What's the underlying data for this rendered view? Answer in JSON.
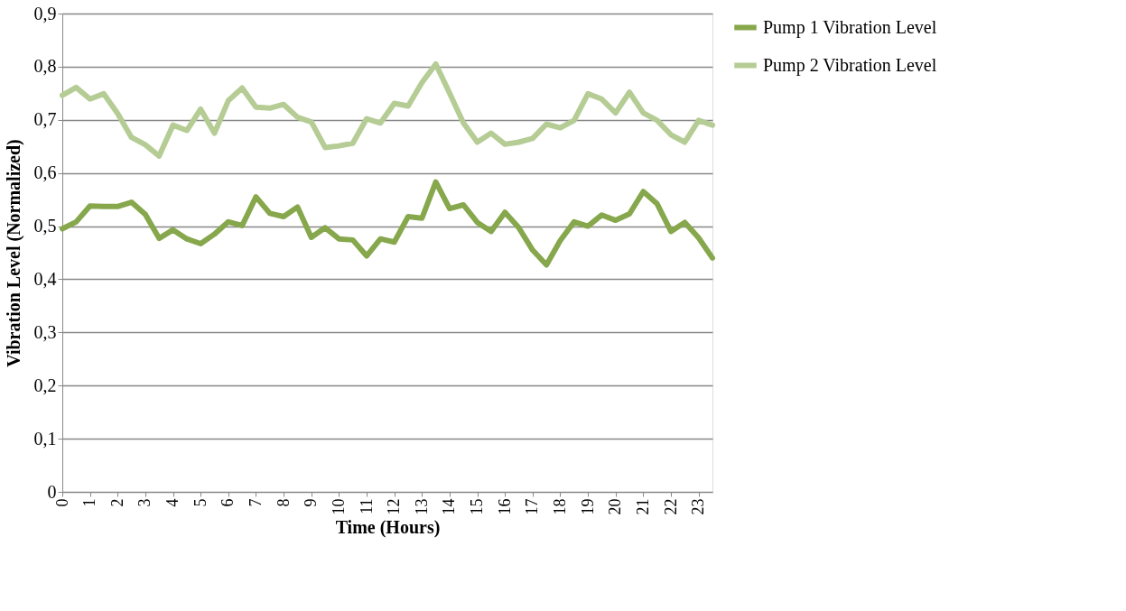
{
  "chart_data": {
    "type": "line",
    "xlabel": "Time (Hours)",
    "ylabel": "Vibration Level (Normalized)",
    "x": [
      0,
      0.5,
      1,
      1.5,
      2,
      2.5,
      3,
      3.5,
      4,
      4.5,
      5,
      5.5,
      6,
      6.5,
      7,
      7.5,
      8,
      8.5,
      9,
      9.5,
      10,
      10.5,
      11,
      11.5,
      12,
      12.5,
      13,
      13.5,
      14,
      14.5,
      15,
      15.5,
      16,
      16.5,
      17,
      17.5,
      18,
      18.5,
      19,
      19.5,
      20,
      20.5,
      21,
      21.5,
      22,
      22.5,
      23,
      23.5
    ],
    "series": [
      {
        "name": "Pump 1 Vibration Level",
        "color": "#86a74b",
        "values": [
          0.495,
          0.508,
          0.538,
          0.537,
          0.537,
          0.545,
          0.522,
          0.477,
          0.493,
          0.476,
          0.467,
          0.485,
          0.508,
          0.501,
          0.555,
          0.524,
          0.518,
          0.536,
          0.479,
          0.497,
          0.476,
          0.474,
          0.444,
          0.476,
          0.47,
          0.518,
          0.515,
          0.583,
          0.533,
          0.54,
          0.507,
          0.49,
          0.526,
          0.497,
          0.455,
          0.427,
          0.473,
          0.508,
          0.5,
          0.521,
          0.511,
          0.523,
          0.565,
          0.542,
          0.49,
          0.507,
          0.478,
          0.44
        ]
      },
      {
        "name": "Pump 2 Vibration Level",
        "color": "#b5cc95",
        "values": [
          0.746,
          0.761,
          0.739,
          0.749,
          0.712,
          0.667,
          0.653,
          0.632,
          0.69,
          0.68,
          0.72,
          0.675,
          0.736,
          0.76,
          0.724,
          0.722,
          0.729,
          0.705,
          0.696,
          0.648,
          0.651,
          0.656,
          0.702,
          0.694,
          0.731,
          0.726,
          0.77,
          0.805,
          0.75,
          0.694,
          0.658,
          0.675,
          0.654,
          0.658,
          0.665,
          0.692,
          0.685,
          0.699,
          0.749,
          0.739,
          0.713,
          0.752,
          0.713,
          0.699,
          0.672,
          0.658,
          0.699,
          0.69
        ]
      }
    ],
    "xlim": [
      0,
      23.5
    ],
    "xticks": [
      0,
      1,
      2,
      3,
      4,
      5,
      6,
      7,
      8,
      9,
      10,
      11,
      12,
      13,
      14,
      15,
      16,
      17,
      18,
      19,
      20,
      21,
      22,
      23
    ],
    "ylim": [
      0,
      0.9
    ],
    "yticks": [
      0,
      {
        "value": 0.1,
        "label": "0,1"
      },
      {
        "value": 0.2,
        "label": "0,2"
      },
      {
        "value": 0.3,
        "label": "0,3"
      },
      {
        "value": 0.4,
        "label": "0,4"
      },
      {
        "value": 0.5,
        "label": "0,5"
      },
      {
        "value": 0.6,
        "label": "0,6"
      },
      {
        "value": 0.7,
        "label": "0,7"
      },
      {
        "value": 0.8,
        "label": "0,8"
      },
      {
        "value": 0.9,
        "label": "0,9"
      }
    ],
    "grid": "y",
    "legend": "right",
    "marker": "none",
    "line_style": "solid"
  }
}
